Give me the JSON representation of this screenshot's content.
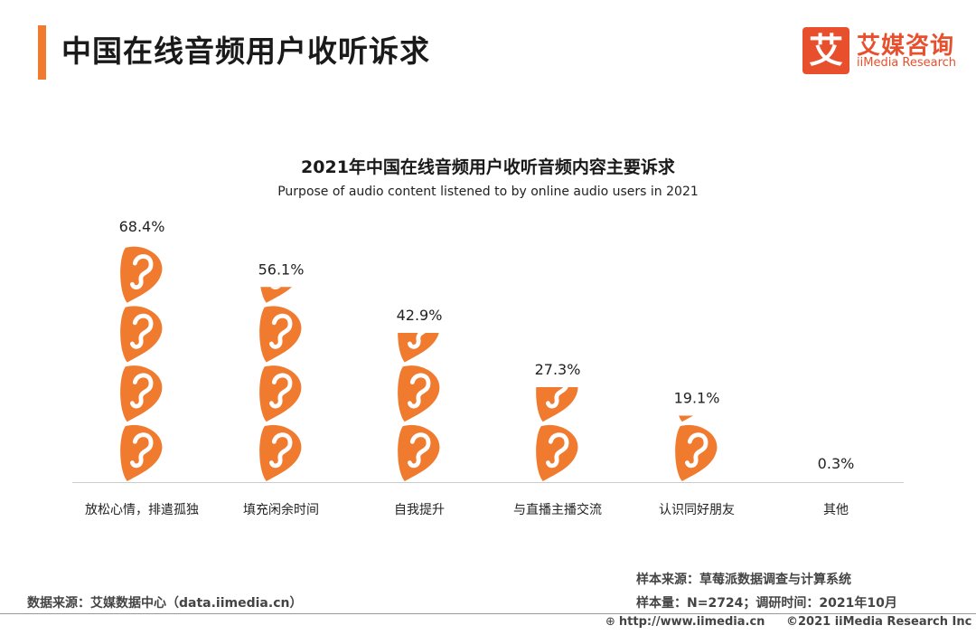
{
  "header": {
    "title": "中国在线音频用户收听诉求"
  },
  "logo": {
    "mark": "艾",
    "name_cn": "艾媒咨询",
    "name_en": "iiMedia Research"
  },
  "colors": {
    "accent": "#f07a2e",
    "brand": "#e8502d",
    "axis": "#cccccc"
  },
  "chart_data": {
    "type": "bar",
    "title": "2021年中国在线音频用户收听音频内容主要诉求",
    "subtitle": "Purpose of audio content listened to by online audio users in 2021",
    "categories": [
      "放松心情，排遣孤独",
      "填充闲余时间",
      "自我提升",
      "与直播主播交流",
      "认识同好朋友",
      "其他"
    ],
    "values": [
      68.4,
      56.1,
      42.9,
      27.3,
      19.1,
      0.3
    ],
    "value_labels": [
      "68.4%",
      "56.1%",
      "42.9%",
      "27.3%",
      "19.1%",
      "0.3%"
    ],
    "unit": "%",
    "ylim": [
      0,
      68.4
    ],
    "bar_style": "stacked ear pictograms",
    "grid": false
  },
  "footer": {
    "source": "数据来源：艾媒数据中心（data.iimedia.cn）",
    "sample_source": "样本来源：草莓派数据调查与计算系统",
    "sample_size": "样本量：N=2724；调研时间：2021年10月",
    "url": "http://www.iimedia.cn",
    "copyright": "©2021  iiMedia Research  Inc"
  }
}
